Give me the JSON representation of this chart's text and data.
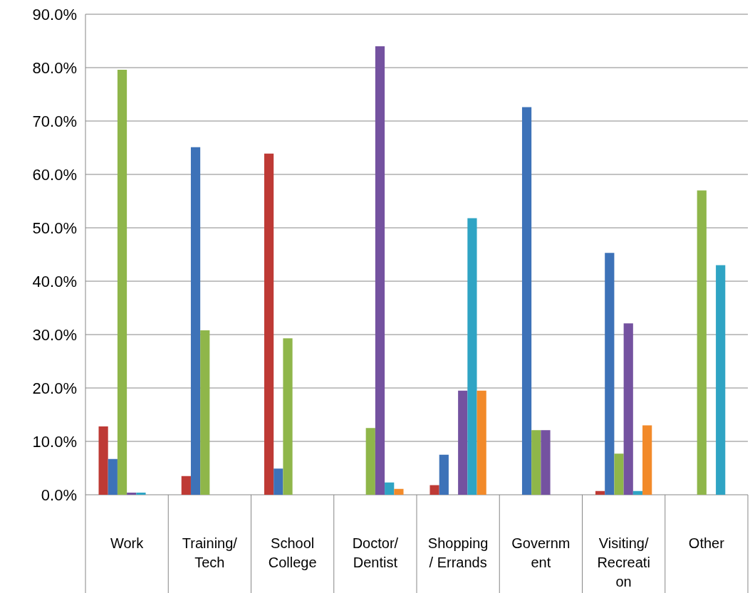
{
  "chart_data": {
    "type": "bar",
    "categories": [
      "Work",
      "Training/ Tech",
      "School College",
      "Doctor/ Dentist",
      "Shopping / Errands",
      "Government",
      "Visiting/ Recreation",
      "Other"
    ],
    "series": [
      {
        "color": "#be3a35",
        "values": [
          12.8,
          3.5,
          63.9,
          null,
          1.8,
          null,
          0.7,
          null
        ]
      },
      {
        "color": "#3d72b8",
        "values": [
          6.7,
          65.1,
          4.9,
          null,
          7.5,
          72.6,
          45.3,
          null
        ]
      },
      {
        "color": "#8fb64a",
        "values": [
          79.6,
          30.8,
          29.3,
          12.5,
          null,
          12.1,
          7.7,
          57.0
        ]
      },
      {
        "color": "#7452a0",
        "values": [
          0.4,
          null,
          null,
          84.0,
          19.5,
          12.1,
          32.1,
          null
        ]
      },
      {
        "color": "#2fa4c4",
        "values": [
          0.4,
          null,
          null,
          2.3,
          51.8,
          null,
          0.7,
          43.0
        ]
      },
      {
        "color": "#f28a2a",
        "values": [
          null,
          null,
          null,
          1.1,
          19.5,
          null,
          13.0,
          null
        ]
      }
    ],
    "ylim": [
      0,
      90
    ],
    "yticks": [
      {
        "value": 0,
        "label": "0.0%"
      },
      {
        "value": 10,
        "label": "10.0%"
      },
      {
        "value": 20,
        "label": "20.0%"
      },
      {
        "value": 30,
        "label": "30.0%"
      },
      {
        "value": 40,
        "label": "40.0%"
      },
      {
        "value": 50,
        "label": "50.0%"
      },
      {
        "value": 60,
        "label": "60.0%"
      },
      {
        "value": 70,
        "label": "70.0%"
      },
      {
        "value": 80,
        "label": "80.0%"
      },
      {
        "value": 90,
        "label": "90.0%"
      }
    ],
    "grid": "y"
  }
}
